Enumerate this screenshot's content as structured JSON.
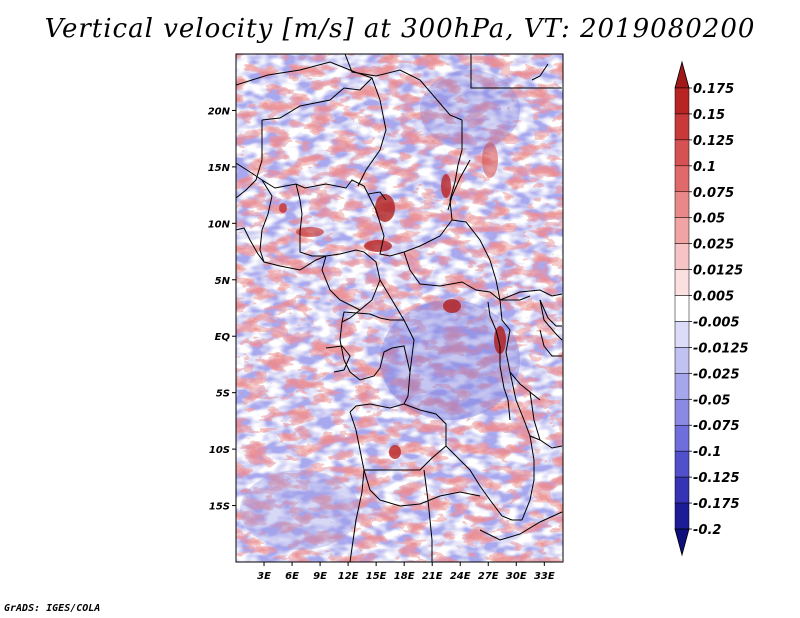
{
  "title": "Vertical velocity [m/s] at 300hPa, VT: 2019080200",
  "credit": "GrADS: IGES/COLA",
  "map": {
    "lon_range": [
      0,
      35
    ],
    "lat_range": [
      -20,
      25
    ],
    "lon_ticks": [
      "3E",
      "6E",
      "9E",
      "12E",
      "15E",
      "18E",
      "21E",
      "24E",
      "27E",
      "30E",
      "33E"
    ],
    "lon_tick_values": [
      3,
      6,
      9,
      12,
      15,
      18,
      21,
      24,
      27,
      30,
      33
    ],
    "lat_ticks": [
      "20N",
      "15N",
      "10N",
      "5N",
      "EQ",
      "5S",
      "10S",
      "15S"
    ],
    "lat_tick_values": [
      20,
      15,
      10,
      5,
      0,
      -5,
      -10,
      -15
    ]
  },
  "colorbar": {
    "levels": [
      "0.175",
      "0.15",
      "0.125",
      "0.1",
      "0.075",
      "0.05",
      "0.025",
      "0.0125",
      "0.005",
      "-0.005",
      "-0.0125",
      "-0.025",
      "-0.05",
      "-0.075",
      "-0.1",
      "-0.125",
      "-0.175",
      "-0.2"
    ],
    "colors": [
      "#a01818",
      "#b82424",
      "#c83a3a",
      "#d65252",
      "#e06a6a",
      "#e88888",
      "#f0a4a4",
      "#f6c4c4",
      "#fbe0e0",
      "#ffffff",
      "#dcdcf8",
      "#c2c2f2",
      "#a6a6ec",
      "#8a8ae4",
      "#6e6edc",
      "#5050cc",
      "#3434b4",
      "#1c1c98",
      "#0e0e7c"
    ]
  }
}
